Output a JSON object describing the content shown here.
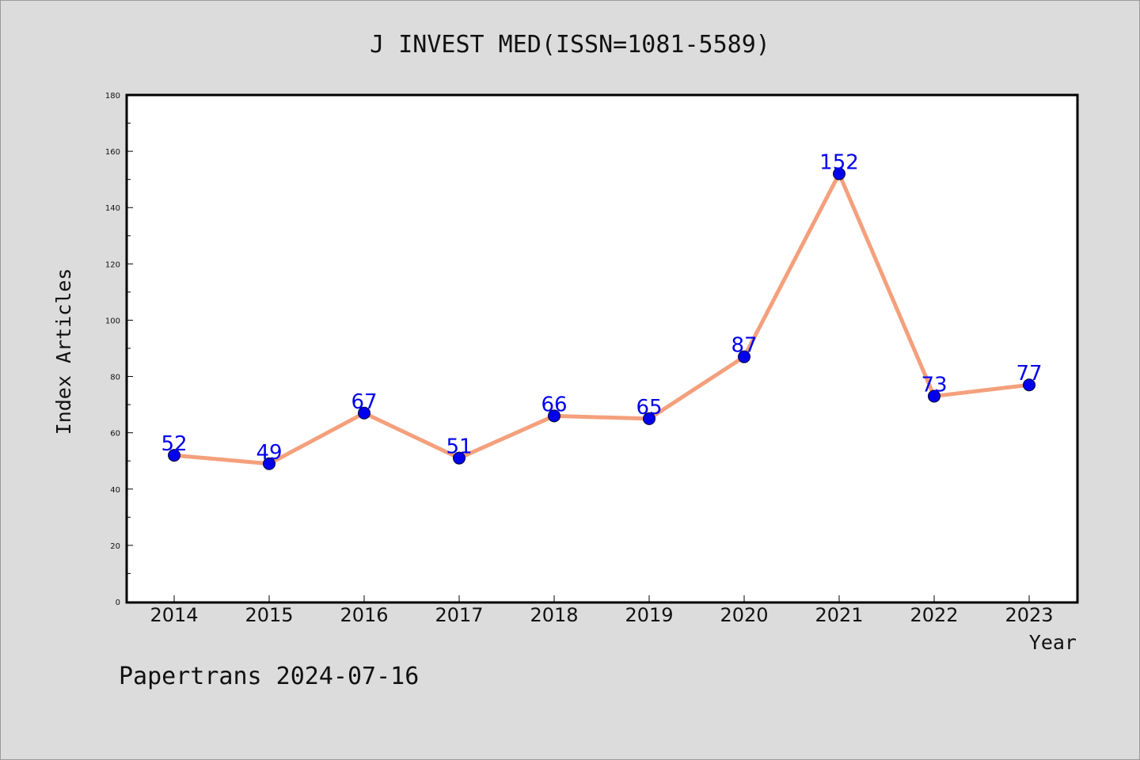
{
  "chart_data": {
    "type": "line",
    "title": "J INVEST MED(ISSN=1081-5589)",
    "xlabel": "Year",
    "ylabel": "Index Articles",
    "categories": [
      "2014",
      "2015",
      "2016",
      "2017",
      "2018",
      "2019",
      "2020",
      "2021",
      "2022",
      "2023"
    ],
    "series": [
      {
        "values": [
          52,
          49,
          67,
          51,
          66,
          65,
          87,
          152,
          73,
          77
        ]
      }
    ],
    "ylim": [
      0,
      180
    ],
    "yticks": [
      0,
      20,
      40,
      60,
      80,
      100,
      120,
      140,
      160,
      180
    ],
    "grid": false,
    "line_color": "#f4a07c",
    "marker_color": "#0000ee",
    "label_color": "#0000ee"
  },
  "footer": "Papertrans 2024-07-16"
}
